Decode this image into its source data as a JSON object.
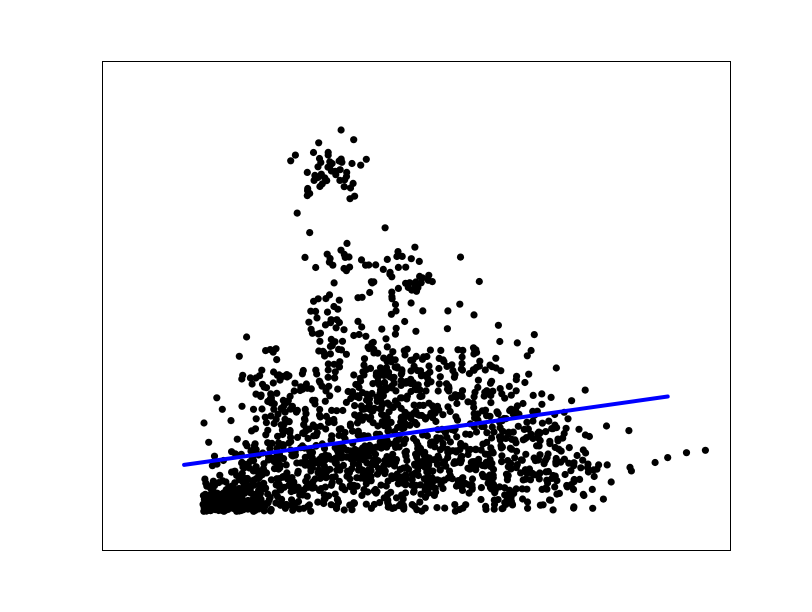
{
  "chart_data": {
    "type": "scatter",
    "title": "",
    "xlabel": "",
    "ylabel": "",
    "xlim": [
      0,
      100
    ],
    "ylim": [
      0,
      100
    ],
    "grid": false,
    "ticks_visible": false,
    "colors": {
      "points": "#000000",
      "fit_line": "#0000ff",
      "frame": "#000000",
      "background": "#ffffff"
    },
    "series": [
      {
        "kind": "scatter",
        "clusters": [
          {
            "cx": 20,
            "cy": 9,
            "sx": 3.5,
            "sy": 1.8,
            "n": 220
          },
          {
            "cx": 25,
            "cy": 14,
            "sx": 6,
            "sy": 3,
            "n": 160
          },
          {
            "cx": 35,
            "cy": 20,
            "sx": 8,
            "sy": 6,
            "n": 260
          },
          {
            "cx": 53,
            "cy": 16,
            "sx": 11,
            "sy": 5,
            "n": 380
          },
          {
            "cx": 50,
            "cy": 30,
            "sx": 8,
            "sy": 7,
            "n": 260
          },
          {
            "cx": 44,
            "cy": 36,
            "sx": 7,
            "sy": 6,
            "n": 120
          },
          {
            "cx": 28,
            "cy": 35,
            "sx": 3.5,
            "sy": 4,
            "n": 50
          },
          {
            "cx": 65,
            "cy": 24,
            "sx": 6,
            "sy": 8,
            "n": 110
          },
          {
            "cx": 73,
            "cy": 18,
            "sx": 5,
            "sy": 4,
            "n": 40
          },
          {
            "cx": 47,
            "cy": 56,
            "sx": 2.8,
            "sy": 3.2,
            "n": 40
          },
          {
            "cx": 38,
            "cy": 59,
            "sx": 2.2,
            "sy": 1.8,
            "n": 18
          },
          {
            "cx": 36,
            "cy": 46,
            "sx": 1.6,
            "sy": 5,
            "n": 25
          },
          {
            "cx": 36,
            "cy": 78,
            "sx": 3,
            "sy": 3.2,
            "n": 42
          }
        ],
        "extra_points": [
          [
            88,
            18
          ],
          [
            90,
            19
          ],
          [
            93,
            20
          ],
          [
            96,
            20.5
          ],
          [
            84,
            17
          ],
          [
            81,
            14
          ],
          [
            79,
            17.5
          ],
          [
            33,
            65
          ],
          [
            33,
            73
          ],
          [
            35,
            75
          ],
          [
            45,
            66
          ],
          [
            50,
            53
          ],
          [
            51,
            49
          ],
          [
            55,
            49
          ],
          [
            31,
            69
          ],
          [
            40,
            84
          ],
          [
            42,
            80
          ],
          [
            57,
            60
          ],
          [
            60,
            55
          ],
          [
            38,
            86
          ],
          [
            75,
            12.5
          ],
          [
            78,
            12.5
          ],
          [
            72,
            13
          ],
          [
            70,
            12.5
          ]
        ]
      },
      {
        "kind": "line",
        "x": [
          13,
          90
        ],
        "y": [
          17.5,
          31.5
        ]
      }
    ]
  }
}
